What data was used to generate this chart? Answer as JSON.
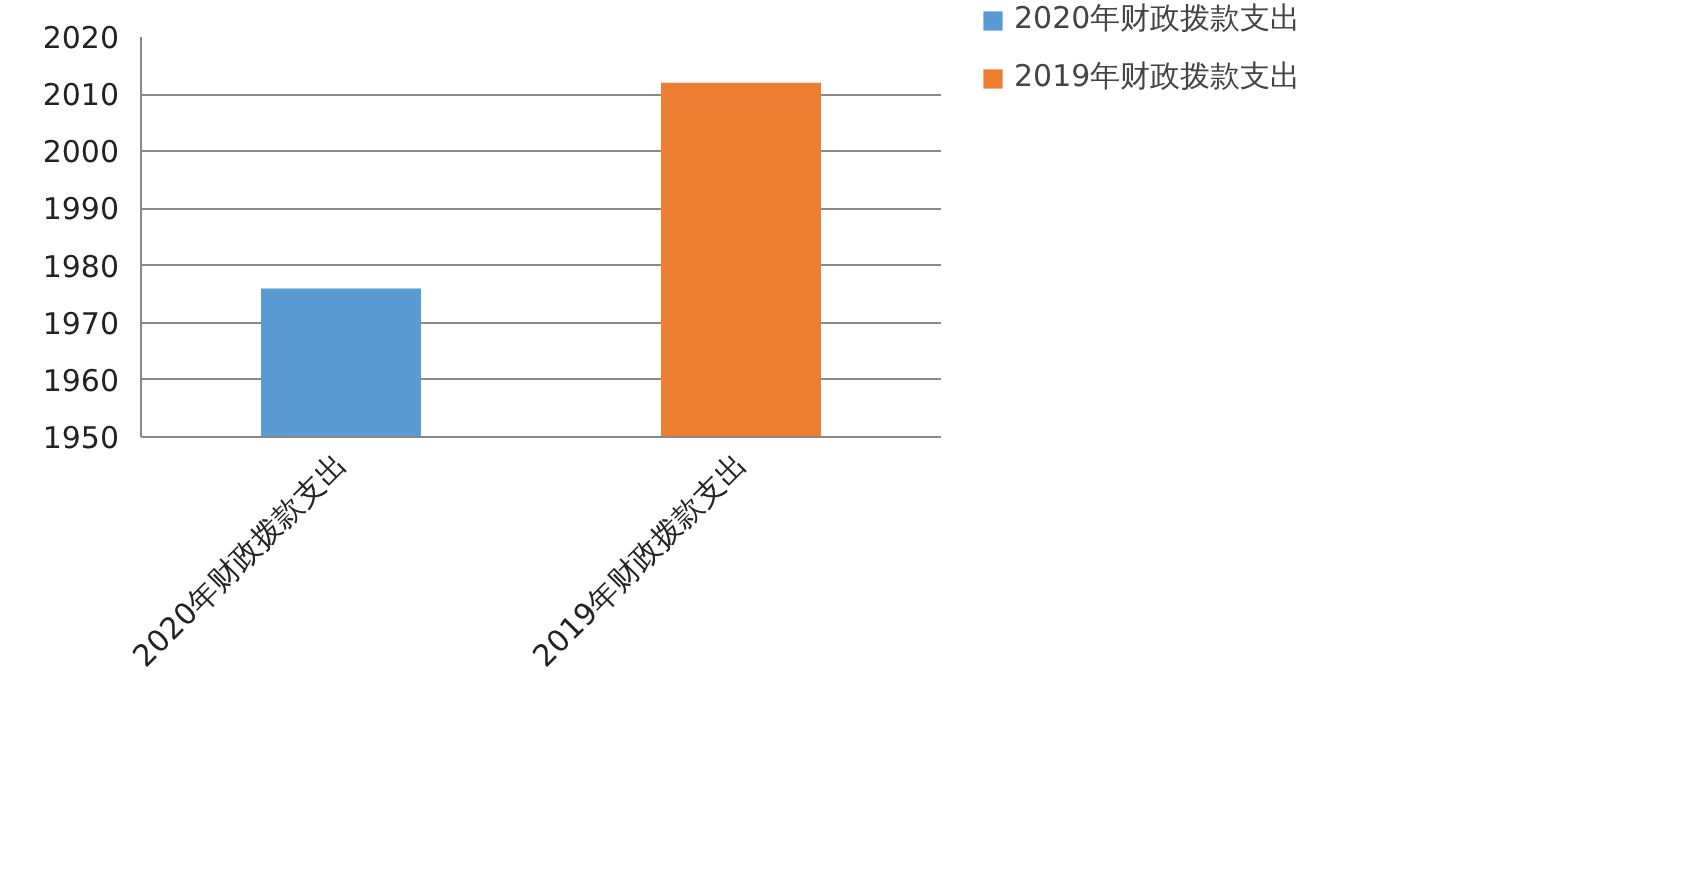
{
  "chart_data": {
    "type": "bar",
    "stacked": true,
    "categories": [
      "2020年财政拨款支出",
      "2019年财政拨款支出"
    ],
    "series": [
      {
        "name": "2020年财政拨款支出",
        "color": "#5b9bd5",
        "values": [
          1976,
          null
        ]
      },
      {
        "name": "2019年财政拨款支出",
        "color": "#ed7d31",
        "values": [
          null,
          2012
        ]
      }
    ],
    "ylim": [
      1950,
      2020
    ],
    "yticks": [
      1950,
      1960,
      1970,
      1980,
      1990,
      2000,
      2010,
      2020
    ],
    "grid": "y",
    "legend": "right"
  }
}
